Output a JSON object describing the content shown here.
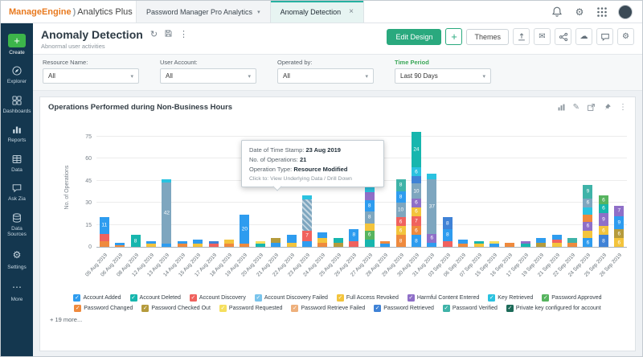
{
  "topbar": {
    "logo": {
      "brand": "ManageEngine",
      "paren": ")",
      "product": "Analytics Plus"
    },
    "tabs": [
      {
        "label": "Password Manager Pro Analytics",
        "type": "dropdown"
      },
      {
        "label": "Anomaly Detection",
        "type": "closable",
        "active": true
      }
    ],
    "icons": [
      "notification-bell-icon",
      "settings-gear-icon",
      "apps-grid-icon",
      "avatar"
    ]
  },
  "sidebar": {
    "items": [
      {
        "label": "Create",
        "icon": "plus-icon",
        "primary": true
      },
      {
        "label": "Explorer",
        "icon": "explorer-icon"
      },
      {
        "label": "Dashboards",
        "icon": "dashboards-icon"
      },
      {
        "label": "Reports",
        "icon": "reports-icon"
      },
      {
        "label": "Data",
        "icon": "data-icon"
      },
      {
        "label": "Ask Zia",
        "icon": "ask-zia-icon"
      },
      {
        "label": "Data Sources",
        "icon": "data-sources-icon"
      },
      {
        "label": "Settings",
        "icon": "settings-gear-icon"
      },
      {
        "label": "More",
        "icon": "more-dots-icon"
      }
    ]
  },
  "header": {
    "title": "Anomaly Detection",
    "subtitle": "Abnormal user activities",
    "title_icons": [
      "refresh-icon",
      "save-icon",
      "kebab-menu-icon"
    ],
    "buttons": {
      "edit_design": "Edit Design",
      "add": "+",
      "themes": "Themes"
    },
    "action_icons": [
      "export-icon",
      "mail-icon",
      "share-icon",
      "cloud-icon",
      "comment-icon",
      "gear-icon"
    ]
  },
  "filters": [
    {
      "label": "Resource Name:",
      "value": "All"
    },
    {
      "label": "User Account:",
      "value": "All"
    },
    {
      "label": "Operated by:",
      "value": "All"
    },
    {
      "label": "Time Period",
      "value": "Last 90 Days",
      "accent": true
    }
  ],
  "chart_card": {
    "title": "Operations Performed during Non-Business Hours",
    "icons": [
      "chart-type-icon",
      "edit-pencil-icon",
      "open-window-icon",
      "pin-icon",
      "kebab-menu-icon"
    ]
  },
  "tooltip": {
    "rows": [
      {
        "label": "Date of Time Stamp:",
        "value": "23 Aug 2019"
      },
      {
        "label": "No. of Operations:",
        "value": "21"
      },
      {
        "label": "Operation Type:",
        "value": "Resource Modified"
      }
    ],
    "footer_label": "Click to:",
    "footer_value": "View Underlying Data / Drill Down"
  },
  "legend_more": "+ 19 more...",
  "chart_data": {
    "type": "bar",
    "stacked": true,
    "title": "Operations Performed during Non-Business Hours",
    "ylabel": "No. of Operations",
    "yticks": [
      0,
      15,
      30,
      45,
      60,
      75
    ],
    "ylim": [
      0,
      75
    ],
    "ymax_draw": 82,
    "grid": true,
    "legend_position": "bottom",
    "legend": [
      "Account Added",
      "Account Deleted",
      "Account Discovery",
      "Account Discovery Failed",
      "Full Access Revoked",
      "Harmful Content Entered",
      "Key Retrieved",
      "Password Approved",
      "Password Changed",
      "Password Checked Out",
      "Password Requested",
      "Password Retrieve Failed",
      "Password Retrieved",
      "Password Verified",
      "Private key configured for account"
    ],
    "series_colors": {
      "Account Added": "#2e9cef",
      "Account Deleted": "#17b6ae",
      "Account Discovery": "#f0625e",
      "Account Discovery Failed": "#79c4ec",
      "Full Access Revoked": "#f3c43c",
      "Harmful Content Entered": "#8f6fc8",
      "Key Retrieved": "#2ac2e0",
      "Password Approved": "#57b45f",
      "Password Changed": "#ef8a3d",
      "Password Checked Out": "#b59b3c",
      "Password Requested": "#f5df5e",
      "Password Retrieve Failed": "#eeb07c",
      "Password Retrieved": "#3f82d6",
      "Password Verified": "#3fb3a8",
      "Private key configured for account": "#1d6b59",
      "Resource Modified": "#7ea6bf"
    },
    "bars": [
      {
        "label": "05 Aug 2019",
        "segments": [
          {
            "s": "Password Changed",
            "v": 4
          },
          {
            "s": "Account Discovery",
            "v": 5
          },
          {
            "s": "Account Added",
            "v": 11
          }
        ]
      },
      {
        "label": "06 Aug 2019",
        "segments": [
          {
            "s": "Password Changed",
            "v": 1
          },
          {
            "s": "Account Added",
            "v": 2
          }
        ]
      },
      {
        "label": "08 Aug 2019",
        "segments": [
          {
            "s": "Account Deleted",
            "v": 8
          }
        ]
      },
      {
        "label": "12 Aug 2019",
        "segments": [
          {
            "s": "Full Access Revoked",
            "v": 2
          },
          {
            "s": "Account Added",
            "v": 2
          }
        ]
      },
      {
        "label": "13 Aug 2019",
        "segments": [
          {
            "s": "Account Added",
            "v": 2
          },
          {
            "s": "Resource Modified",
            "v": 42
          },
          {
            "s": "Key Retrieved",
            "v": 2
          }
        ]
      },
      {
        "label": "14 Aug 2019",
        "segments": [
          {
            "s": "Password Changed",
            "v": 2
          },
          {
            "s": "Account Added",
            "v": 2
          }
        ]
      },
      {
        "label": "15 Aug 2019",
        "segments": [
          {
            "s": "Full Access Revoked",
            "v": 2
          },
          {
            "s": "Account Added",
            "v": 3
          }
        ]
      },
      {
        "label": "17 Aug 2019",
        "segments": [
          {
            "s": "Account Discovery",
            "v": 2
          },
          {
            "s": "Password Retrieved",
            "v": 2
          }
        ]
      },
      {
        "label": "18 Aug 2019",
        "segments": [
          {
            "s": "Password Changed",
            "v": 2
          },
          {
            "s": "Full Access Revoked",
            "v": 3
          }
        ]
      },
      {
        "label": "19 Aug 2019",
        "segments": [
          {
            "s": "Password Changed",
            "v": 2
          },
          {
            "s": "Account Added",
            "v": 20
          }
        ]
      },
      {
        "label": "20 Aug 2019",
        "segments": [
          {
            "s": "Account Deleted",
            "v": 2
          },
          {
            "s": "Password Requested",
            "v": 2
          }
        ]
      },
      {
        "label": "21 Aug 2019",
        "segments": [
          {
            "s": "Account Added",
            "v": 3
          },
          {
            "s": "Password Checked Out",
            "v": 3
          }
        ]
      },
      {
        "label": "22 Aug 2019",
        "segments": [
          {
            "s": "Full Access Revoked",
            "v": 3
          },
          {
            "s": "Account Added",
            "v": 5
          }
        ]
      },
      {
        "label": "23 Aug 2019",
        "hover": true,
        "segments": [
          {
            "s": "Account Added",
            "v": 4
          },
          {
            "s": "Account Discovery",
            "v": 7
          },
          {
            "s": "Resource Modified",
            "v": 21,
            "hatch": true
          },
          {
            "s": "Key Retrieved",
            "v": 3
          }
        ]
      },
      {
        "label": "24 Aug 2019",
        "segments": [
          {
            "s": "Password Changed",
            "v": 3
          },
          {
            "s": "Full Access Revoked",
            "v": 3
          },
          {
            "s": "Account Added",
            "v": 4
          }
        ]
      },
      {
        "label": "25 Aug 2019",
        "segments": [
          {
            "s": "Password Checked Out",
            "v": 3
          },
          {
            "s": "Account Deleted",
            "v": 3
          }
        ]
      },
      {
        "label": "26 Aug 2019",
        "segments": [
          {
            "s": "Account Discovery",
            "v": 4
          },
          {
            "s": "Account Added",
            "v": 8
          }
        ]
      },
      {
        "label": "27 Aug 2019",
        "segments": [
          {
            "s": "Account Deleted",
            "v": 5
          },
          {
            "s": "Password Approved",
            "v": 6
          },
          {
            "s": "Full Access Revoked",
            "v": 5
          },
          {
            "s": "Resource Modified",
            "v": 8
          },
          {
            "s": "Account Added",
            "v": 8
          },
          {
            "s": "Harmful Content Entered",
            "v": 5
          },
          {
            "s": "Key Retrieved",
            "v": 5
          }
        ]
      },
      {
        "label": "28 Aug 2019",
        "segments": [
          {
            "s": "Account Added",
            "v": 2
          },
          {
            "s": "Password Changed",
            "v": 2
          }
        ]
      },
      {
        "label": "29 Aug 2019",
        "segments": [
          {
            "s": "Password Changed",
            "v": 8
          },
          {
            "s": "Full Access Revoked",
            "v": 6
          },
          {
            "s": "Account Discovery",
            "v": 6
          },
          {
            "s": "Resource Modified",
            "v": 10
          },
          {
            "s": "Account Added",
            "v": 8
          },
          {
            "s": "Password Verified",
            "v": 8
          }
        ]
      },
      {
        "label": "30 Aug 2019",
        "segments": [
          {
            "s": "Account Added",
            "v": 8
          },
          {
            "s": "Password Changed",
            "v": 6
          },
          {
            "s": "Account Discovery",
            "v": 7
          },
          {
            "s": "Full Access Revoked",
            "v": 6
          },
          {
            "s": "Harmful Content Entered",
            "v": 6
          },
          {
            "s": "Resource Modified",
            "v": 10
          },
          {
            "s": "Password Retrieved",
            "v": 5
          },
          {
            "s": "Key Retrieved",
            "v": 6
          },
          {
            "s": "Account Deleted",
            "v": 24
          }
        ]
      },
      {
        "label": "31 Aug 2019",
        "segments": [
          {
            "s": "Account Added",
            "v": 3
          },
          {
            "s": "Harmful Content Entered",
            "v": 6
          },
          {
            "s": "Resource Modified",
            "v": 37
          },
          {
            "s": "Key Retrieved",
            "v": 4
          }
        ]
      },
      {
        "label": "03 Sep 2019",
        "segments": [
          {
            "s": "Account Discovery",
            "v": 4
          },
          {
            "s": "Account Added",
            "v": 8
          },
          {
            "s": "Password Retrieved",
            "v": 8
          }
        ]
      },
      {
        "label": "06 Sep 2019",
        "segments": [
          {
            "s": "Password Changed",
            "v": 2
          },
          {
            "s": "Account Added",
            "v": 3
          }
        ]
      },
      {
        "label": "07 Sep 2019",
        "segments": [
          {
            "s": "Full Access Revoked",
            "v": 2
          },
          {
            "s": "Account Deleted",
            "v": 2
          }
        ]
      },
      {
        "label": "15 Sep 2019",
        "segments": [
          {
            "s": "Account Added",
            "v": 2
          },
          {
            "s": "Password Requested",
            "v": 2
          }
        ]
      },
      {
        "label": "16 Sep 2019",
        "segments": [
          {
            "s": "Password Changed",
            "v": 3
          }
        ]
      },
      {
        "label": "17 Sep 2019",
        "segments": [
          {
            "s": "Account Deleted",
            "v": 2
          },
          {
            "s": "Harmful Content Entered",
            "v": 2
          }
        ]
      },
      {
        "label": "19 Sep 2019",
        "segments": [
          {
            "s": "Password Checked Out",
            "v": 3
          },
          {
            "s": "Account Added",
            "v": 3
          }
        ]
      },
      {
        "label": "21 Sep 2019",
        "segments": [
          {
            "s": "Full Access Revoked",
            "v": 3
          },
          {
            "s": "Account Discovery",
            "v": 2
          },
          {
            "s": "Account Added",
            "v": 3
          }
        ]
      },
      {
        "label": "22 Sep 2019",
        "segments": [
          {
            "s": "Password Changed",
            "v": 3
          },
          {
            "s": "Password Verified",
            "v": 3
          }
        ]
      },
      {
        "label": "24 Sep 2019",
        "segments": [
          {
            "s": "Account Added",
            "v": 6
          },
          {
            "s": "Full Access Revoked",
            "v": 5
          },
          {
            "s": "Harmful Content Entered",
            "v": 6
          },
          {
            "s": "Password Changed",
            "v": 5
          },
          {
            "s": "Key Retrieved",
            "v": 5
          },
          {
            "s": "Resource Modified",
            "v": 6
          },
          {
            "s": "Password Verified",
            "v": 9
          }
        ]
      },
      {
        "label": "25 Sep 2019",
        "segments": [
          {
            "s": "Password Retrieved",
            "v": 8
          },
          {
            "s": "Full Access Revoked",
            "v": 6
          },
          {
            "s": "Harmful Content Entered",
            "v": 9
          },
          {
            "s": "Account Deleted",
            "v": 6
          },
          {
            "s": "Password Approved",
            "v": 6
          }
        ]
      },
      {
        "label": "26 Sep 2019",
        "segments": [
          {
            "s": "Full Access Revoked",
            "v": 6
          },
          {
            "s": "Password Checked Out",
            "v": 6
          },
          {
            "s": "Account Added",
            "v": 9
          },
          {
            "s": "Harmful Content Entered",
            "v": 7
          }
        ]
      }
    ]
  }
}
